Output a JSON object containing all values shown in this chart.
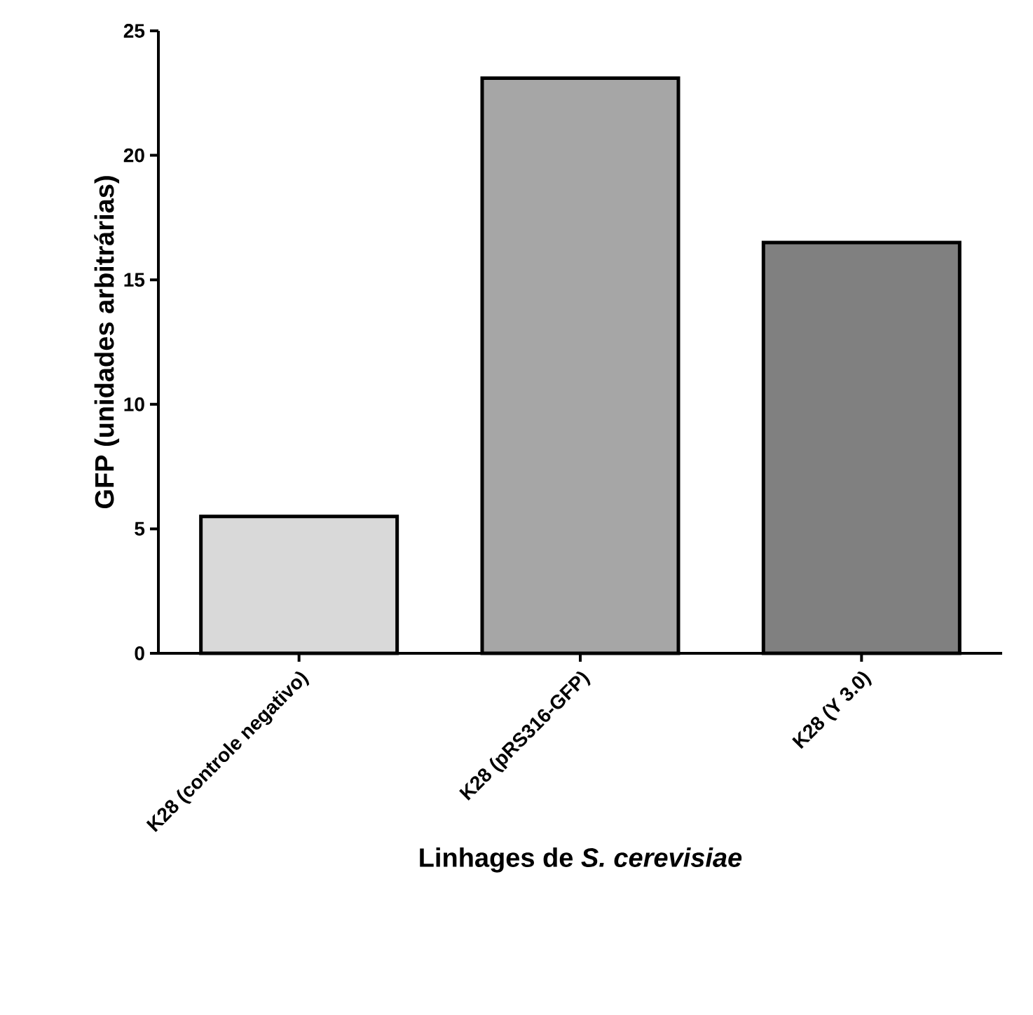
{
  "chart_data": {
    "type": "bar",
    "xlabel": "Linhages de *S. cerevisiae*",
    "ylabel": "GFP (unidades arbitrárias)",
    "categories": [
      "K28 (controle negativo)",
      "K28 (pRS316-GFP)",
      "K28 (Y 3.0)"
    ],
    "values": [
      5.5,
      23.1,
      16.5
    ],
    "colors": [
      "#d9d9d9",
      "#a6a6a6",
      "#808080"
    ],
    "ylim": [
      0,
      25
    ],
    "yticks": [
      0,
      5,
      10,
      15,
      20,
      25
    ]
  }
}
